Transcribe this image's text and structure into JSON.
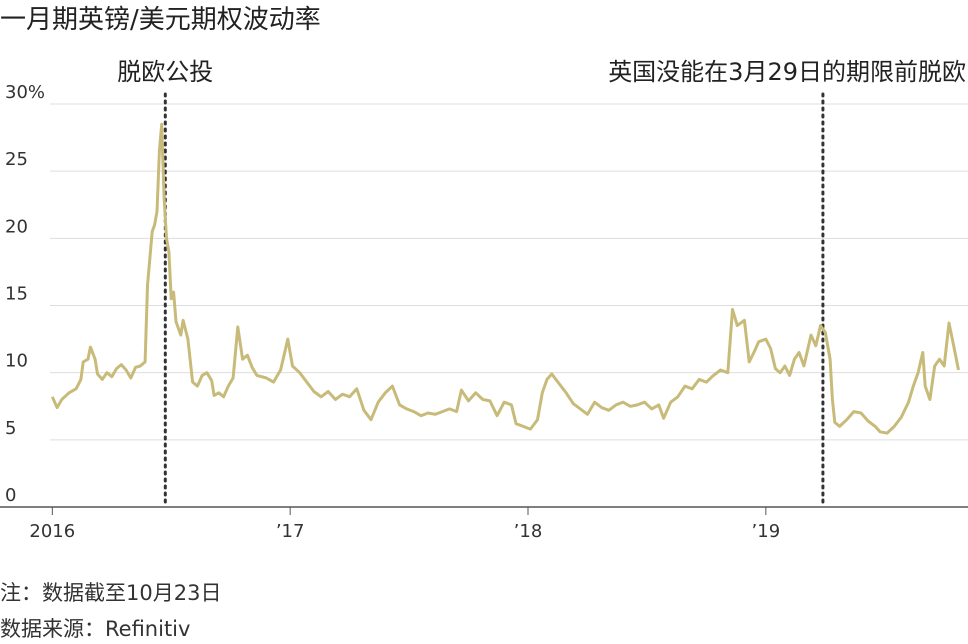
{
  "chart_data": {
    "type": "line",
    "title": "一月期英镑/美元期权波动率",
    "footnote": "注：数据截至10月23日",
    "source": "数据来源：Refinitiv",
    "xlim": [
      2015.78,
      2019.85
    ],
    "ylim": [
      0,
      30
    ],
    "xticks": [
      {
        "value": 2016,
        "label": "2016"
      },
      {
        "value": 2017,
        "label": "’17"
      },
      {
        "value": 2018,
        "label": "’18"
      },
      {
        "value": 2019,
        "label": "’19"
      }
    ],
    "yticks": [
      0,
      5,
      10,
      15,
      20,
      25,
      {
        "value": 30,
        "label": "30%"
      }
    ],
    "grid": true,
    "annotations": [
      {
        "x": 2016.475,
        "label": "脱欧公投"
      },
      {
        "x": 2019.24,
        "label": "英国没能在3月29日的期限前脱欧"
      }
    ],
    "series": [
      {
        "color": "#c8bb7a",
        "x": [
          2016.0,
          2016.02,
          2016.04,
          2016.07,
          2016.1,
          2016.12,
          2016.13,
          2016.15,
          2016.16,
          2016.18,
          2016.19,
          2016.21,
          2016.23,
          2016.25,
          2016.27,
          2016.29,
          2016.31,
          2016.33,
          2016.35,
          2016.37,
          2016.39,
          2016.4,
          2016.42,
          2016.43,
          2016.44,
          2016.45,
          2016.46,
          2016.47,
          2016.48,
          2016.49,
          2016.5,
          2016.51,
          2016.52,
          2016.54,
          2016.55,
          2016.57,
          2016.59,
          2016.61,
          2016.63,
          2016.65,
          2016.67,
          2016.68,
          2016.7,
          2016.72,
          2016.74,
          2016.76,
          2016.78,
          2016.8,
          2016.82,
          2016.84,
          2016.86,
          2016.88,
          2016.9,
          2016.93,
          2016.96,
          2016.99,
          2017.01,
          2017.04,
          2017.07,
          2017.1,
          2017.13,
          2017.16,
          2017.19,
          2017.22,
          2017.25,
          2017.28,
          2017.31,
          2017.34,
          2017.37,
          2017.4,
          2017.43,
          2017.46,
          2017.49,
          2017.52,
          2017.55,
          2017.58,
          2017.61,
          2017.64,
          2017.67,
          2017.7,
          2017.72,
          2017.75,
          2017.78,
          2017.81,
          2017.84,
          2017.87,
          2017.9,
          2017.93,
          2017.95,
          2017.98,
          2018.01,
          2018.04,
          2018.06,
          2018.08,
          2018.1,
          2018.13,
          2018.16,
          2018.19,
          2018.22,
          2018.25,
          2018.28,
          2018.31,
          2018.34,
          2018.37,
          2018.4,
          2018.43,
          2018.46,
          2018.49,
          2018.52,
          2018.55,
          2018.57,
          2018.6,
          2018.63,
          2018.66,
          2018.69,
          2018.72,
          2018.75,
          2018.78,
          2018.81,
          2018.84,
          2018.86,
          2018.88,
          2018.91,
          2018.93,
          2018.95,
          2018.97,
          2019.0,
          2019.02,
          2019.04,
          2019.06,
          2019.08,
          2019.1,
          2019.12,
          2019.14,
          2019.16,
          2019.19,
          2019.21,
          2019.23,
          2019.25,
          2019.27,
          2019.28,
          2019.29,
          2019.31,
          2019.34,
          2019.37,
          2019.4,
          2019.43,
          2019.46,
          2019.48,
          2019.51,
          2019.54,
          2019.57,
          2019.6,
          2019.62,
          2019.64,
          2019.66,
          2019.67,
          2019.69,
          2019.71,
          2019.73,
          2019.75,
          2019.77,
          2019.79,
          2019.81
        ],
        "values": [
          8.2,
          7.4,
          8.0,
          8.5,
          8.8,
          9.5,
          10.8,
          11.0,
          11.9,
          11.0,
          9.9,
          9.5,
          10.0,
          9.7,
          10.3,
          10.6,
          10.2,
          9.6,
          10.4,
          10.5,
          10.8,
          16.5,
          20.5,
          21.0,
          22.0,
          26.5,
          28.5,
          23.0,
          20.0,
          19.0,
          15.5,
          16.0,
          13.8,
          12.8,
          13.9,
          12.5,
          9.3,
          9.0,
          9.8,
          10.0,
          9.4,
          8.3,
          8.5,
          8.2,
          9.0,
          9.6,
          13.4,
          11.0,
          11.3,
          10.4,
          9.8,
          9.7,
          9.6,
          9.3,
          10.2,
          12.5,
          10.5,
          10.0,
          9.3,
          8.6,
          8.2,
          8.6,
          8.0,
          8.4,
          8.2,
          8.8,
          7.2,
          6.5,
          7.8,
          8.5,
          9.0,
          7.6,
          7.3,
          7.1,
          6.8,
          7.0,
          6.9,
          7.1,
          7.3,
          7.1,
          8.7,
          7.9,
          8.5,
          8.0,
          7.9,
          6.8,
          7.8,
          7.6,
          6.2,
          6.0,
          5.8,
          6.5,
          8.5,
          9.5,
          9.9,
          9.2,
          8.5,
          7.7,
          7.3,
          6.9,
          7.8,
          7.4,
          7.2,
          7.6,
          7.8,
          7.5,
          7.6,
          7.8,
          7.3,
          7.6,
          6.6,
          7.8,
          8.2,
          9.0,
          8.8,
          9.5,
          9.3,
          9.8,
          10.2,
          10.0,
          14.7,
          13.5,
          13.9,
          10.8,
          11.5,
          12.3,
          12.5,
          11.8,
          10.3,
          10.0,
          10.5,
          9.8,
          11.0,
          11.5,
          10.5,
          12.8,
          12.0,
          13.5,
          13.0,
          11.0,
          8.0,
          6.3,
          6.0,
          6.5,
          7.1,
          7.0,
          6.4,
          6.0,
          5.6,
          5.5,
          6.0,
          6.7,
          7.8,
          9.0,
          10.0,
          11.5,
          9.0,
          8.0,
          10.5,
          11.0,
          10.5,
          13.7,
          12.0,
          10.2
        ]
      }
    ]
  }
}
